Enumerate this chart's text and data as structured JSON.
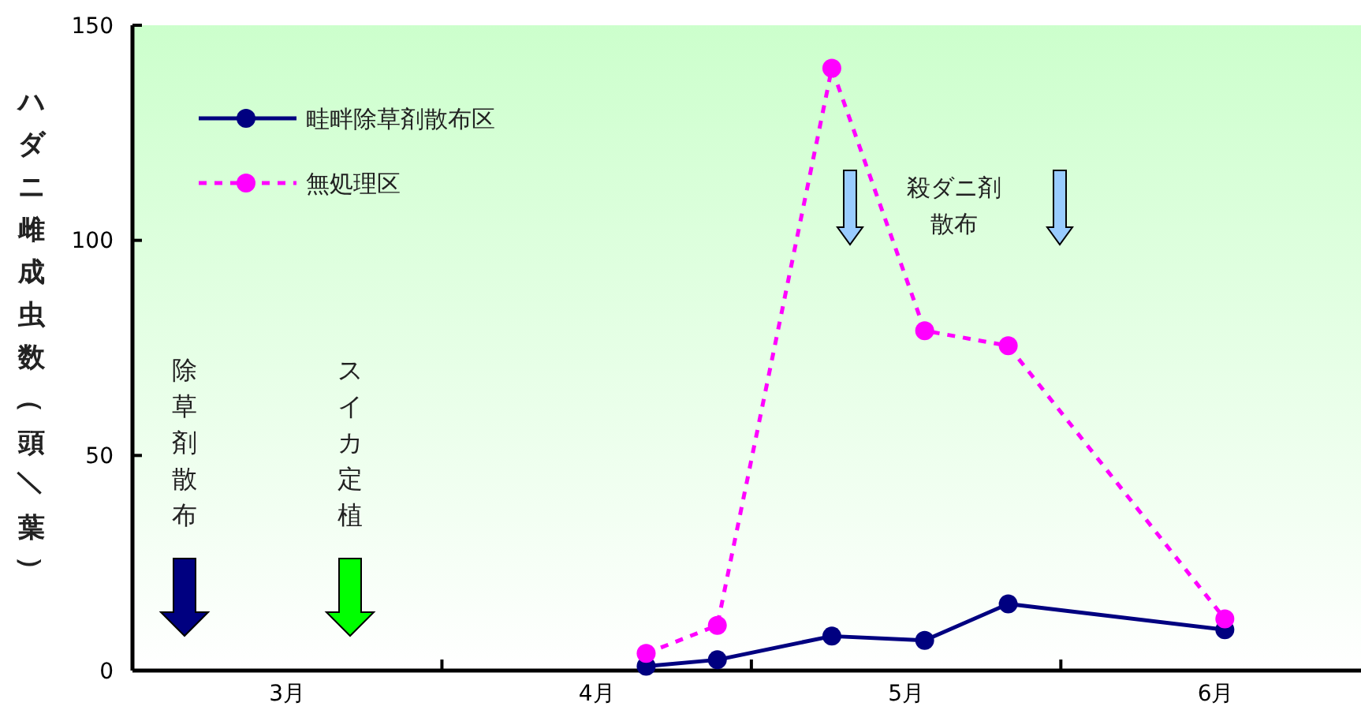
{
  "chart_data": {
    "type": "line",
    "ylabel": "ハダニ雌成虫数（頭／葉）",
    "xlim": [
      3,
      6.97
    ],
    "xticks": [
      {
        "value": 3.5,
        "label": "3月"
      },
      {
        "value": 4,
        "label": null
      },
      {
        "value": 4.5,
        "label": "4月"
      },
      {
        "value": 5,
        "label": null
      },
      {
        "value": 5.5,
        "label": "5月"
      },
      {
        "value": 6,
        "label": null
      },
      {
        "value": 6.5,
        "label": "6月"
      }
    ],
    "ylim": [
      0,
      150
    ],
    "yticks": [
      0,
      50,
      100,
      150
    ],
    "grid": false,
    "legend": "top left",
    "marker": "circle",
    "series": [
      {
        "name": "畦畔除草剤散布区",
        "color": "#000080",
        "line_style": "solid",
        "x": [
          4.66,
          4.89,
          5.26,
          5.56,
          5.83,
          6.53
        ],
        "values": [
          1,
          2.5,
          8,
          7,
          15.5,
          9.5
        ]
      },
      {
        "name": "無処理区",
        "color": "#ff00ff",
        "line_style": "dashed",
        "x": [
          4.66,
          4.89,
          5.26,
          5.56,
          5.83,
          6.53
        ],
        "values": [
          4,
          10.5,
          140,
          79,
          75.5,
          12
        ]
      }
    ],
    "annotations": [
      "除草剤散布",
      "スイカ定植",
      "殺ダニ剤散布"
    ]
  }
}
